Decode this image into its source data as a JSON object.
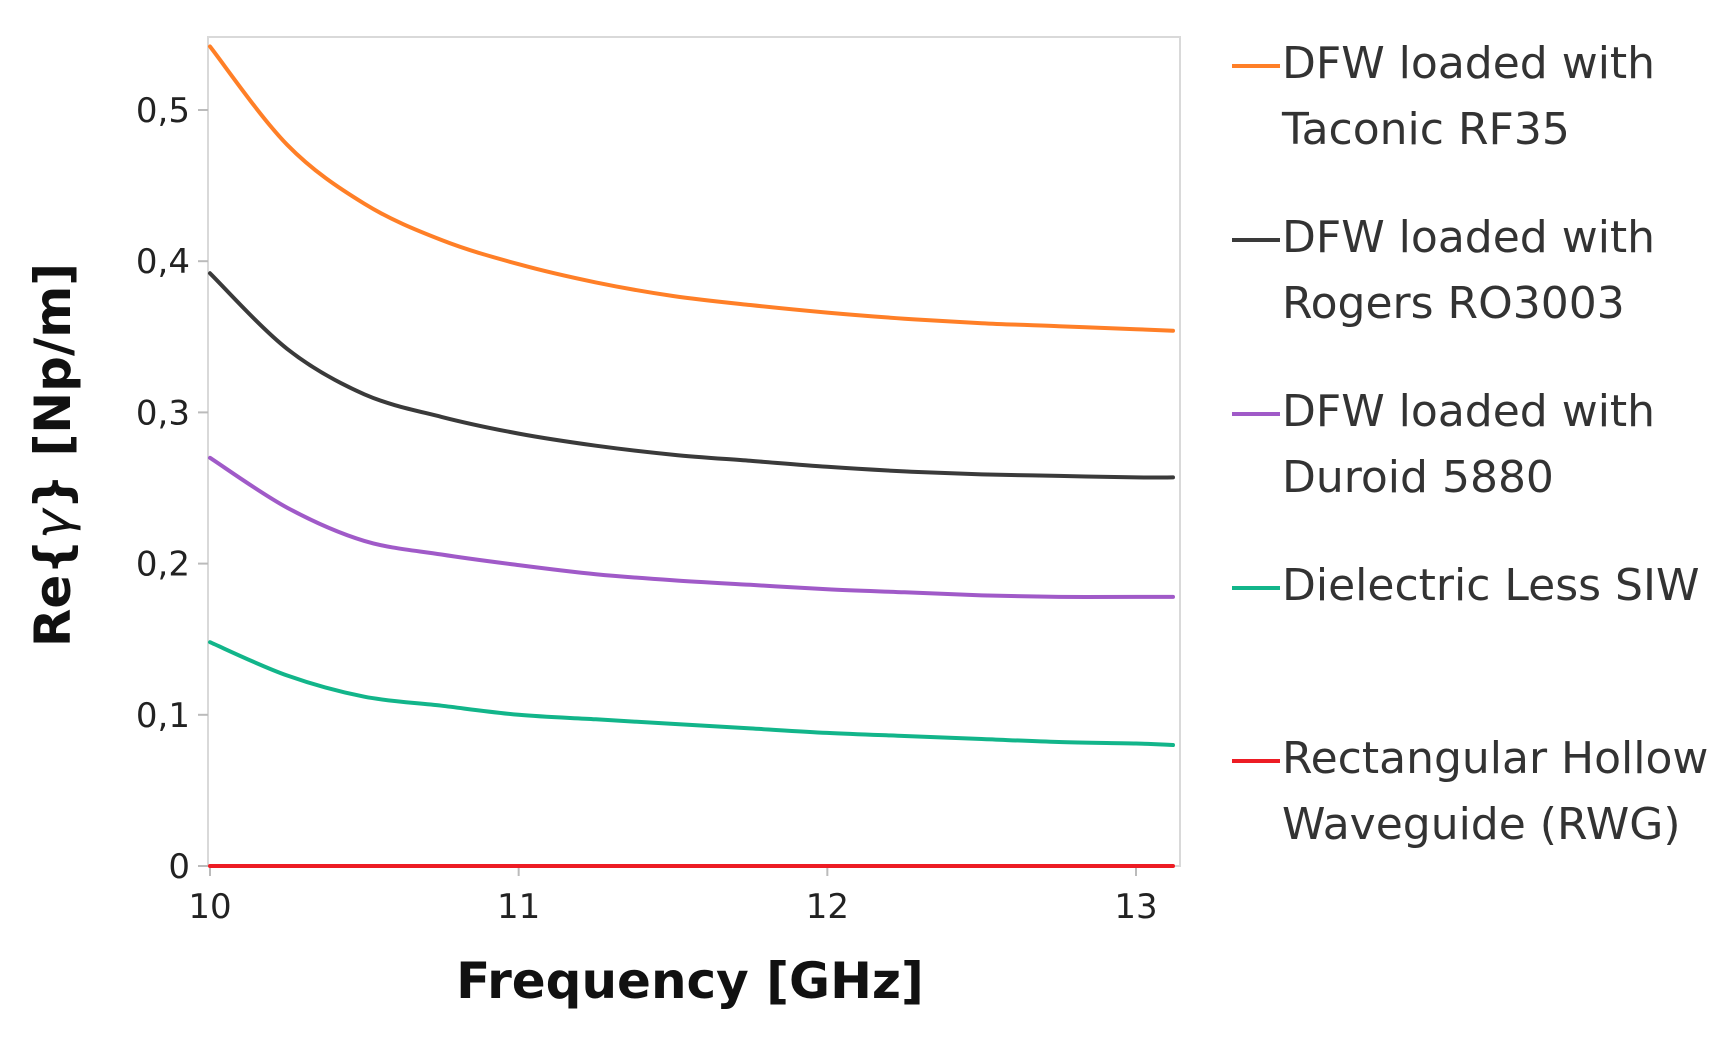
{
  "chart_data": {
    "type": "line",
    "title": "",
    "xlabel": "Frequency [GHz]",
    "ylabel_prefix": "Re{",
    "ylabel_symbol": "γ",
    "ylabel_suffix": "}  [Np/m]",
    "xlim": [
      10,
      13.15
    ],
    "ylim": [
      0,
      0.55
    ],
    "x_ticks": [
      10,
      11,
      12,
      13
    ],
    "x_tick_labels": [
      "10",
      "11",
      "12",
      "13"
    ],
    "y_ticks": [
      0,
      0.1,
      0.2,
      0.3,
      0.4,
      0.5
    ],
    "y_tick_labels": [
      "0",
      "0,1",
      "0,2",
      "0,3",
      "0,4",
      "0,5"
    ],
    "x": [
      10.0,
      10.25,
      10.5,
      10.75,
      11.0,
      11.25,
      11.5,
      11.75,
      12.0,
      12.25,
      12.5,
      12.75,
      13.0,
      13.12
    ],
    "series": [
      {
        "name_lines": [
          "DFW loaded with",
          "Taconic RF35"
        ],
        "color": "#ff7f27",
        "values": [
          0.542,
          0.477,
          0.438,
          0.414,
          0.398,
          0.386,
          0.377,
          0.371,
          0.366,
          0.362,
          0.359,
          0.357,
          0.355,
          0.354
        ]
      },
      {
        "name_lines": [
          "DFW loaded with",
          "Rogers RO3003"
        ],
        "color": "#3a3a3a",
        "values": [
          0.392,
          0.342,
          0.312,
          0.297,
          0.286,
          0.278,
          0.272,
          0.268,
          0.264,
          0.261,
          0.259,
          0.258,
          0.257,
          0.257
        ]
      },
      {
        "name_lines": [
          "DFW loaded with",
          "Duroid 5880"
        ],
        "color": "#a05ac8",
        "values": [
          0.27,
          0.237,
          0.215,
          0.206,
          0.199,
          0.193,
          0.189,
          0.186,
          0.183,
          0.181,
          0.179,
          0.178,
          0.178,
          0.178
        ]
      },
      {
        "name_lines": [
          "Dielectric Less SIW"
        ],
        "color": "#12b58a",
        "values": [
          0.148,
          0.126,
          0.112,
          0.106,
          0.1,
          0.097,
          0.094,
          0.091,
          0.088,
          0.086,
          0.084,
          0.082,
          0.081,
          0.08
        ]
      },
      {
        "name_lines": [
          "Rectangular Hollow",
          "Waveguide (RWG)"
        ],
        "color": "#ed1c24",
        "values": [
          0.0,
          0.0,
          0.0,
          0.0,
          0.0,
          0.0,
          0.0,
          0.0,
          0.0,
          0.0,
          0.0,
          0.0,
          0.0,
          0.0
        ]
      }
    ],
    "grid": false,
    "legend_position": "right"
  }
}
